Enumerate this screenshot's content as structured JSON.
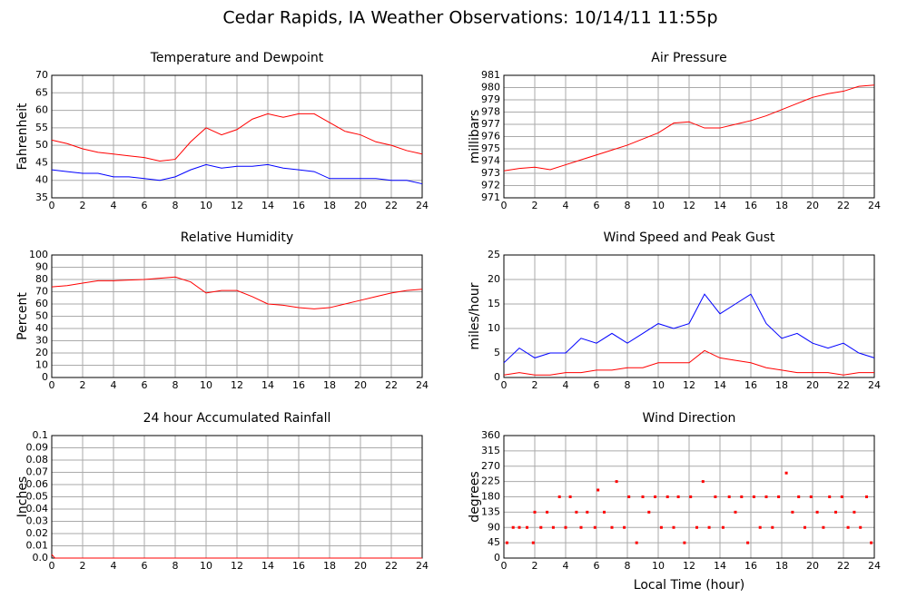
{
  "title": "Cedar Rapids, IA Weather Observations: 10/14/11 11:55p",
  "chart_data": [
    {
      "type": "line",
      "title": "Temperature and Dewpoint",
      "ylabel": "Fahrenheit",
      "x": [
        0,
        1,
        2,
        3,
        4,
        5,
        6,
        7,
        8,
        9,
        10,
        11,
        12,
        13,
        14,
        15,
        16,
        17,
        18,
        19,
        20,
        21,
        22,
        23,
        24
      ],
      "series": [
        {
          "color": "#ff0000",
          "values": [
            51.5,
            50.5,
            49,
            48,
            47.5,
            47,
            46.5,
            45.5,
            46,
            51,
            55,
            53,
            54.5,
            57.5,
            59,
            58,
            59,
            59,
            56.5,
            54,
            53,
            51,
            50,
            48.5,
            47.5
          ]
        },
        {
          "color": "#0000ff",
          "values": [
            43,
            42.5,
            42,
            42,
            41,
            41,
            40.5,
            40,
            41,
            43,
            44.5,
            43.5,
            44,
            44,
            44.5,
            43.5,
            43,
            42.5,
            40.5,
            40.5,
            40.5,
            40.5,
            40,
            40,
            39
          ]
        }
      ],
      "xlim": [
        0,
        24
      ],
      "xticks": [
        0,
        2,
        4,
        6,
        8,
        10,
        12,
        14,
        16,
        18,
        20,
        22,
        24
      ],
      "ylim": [
        35,
        70
      ],
      "yticks": [
        35,
        40,
        45,
        50,
        55,
        60,
        65,
        70
      ],
      "grid": true
    },
    {
      "type": "line",
      "title": "Air Pressure",
      "ylabel": "millibars",
      "x": [
        0,
        1,
        2,
        3,
        4,
        5,
        6,
        7,
        8,
        9,
        10,
        11,
        12,
        13,
        14,
        15,
        16,
        17,
        18,
        19,
        20,
        21,
        22,
        23,
        24
      ],
      "series": [
        {
          "color": "#ff0000",
          "values": [
            973.2,
            973.4,
            973.5,
            973.3,
            973.7,
            974.1,
            974.5,
            974.9,
            975.3,
            975.8,
            976.3,
            977.1,
            977.2,
            976.7,
            976.7,
            977,
            977.3,
            977.7,
            978.2,
            978.7,
            979.2,
            979.5,
            979.7,
            980.1,
            980.2
          ]
        }
      ],
      "xlim": [
        0,
        24
      ],
      "xticks": [
        0,
        2,
        4,
        6,
        8,
        10,
        12,
        14,
        16,
        18,
        20,
        22,
        24
      ],
      "ylim": [
        971,
        981
      ],
      "yticks": [
        971,
        972,
        973,
        974,
        975,
        976,
        977,
        978,
        979,
        980,
        981
      ],
      "grid": true
    },
    {
      "type": "line",
      "title": "Relative Humidity",
      "ylabel": "Percent",
      "x": [
        0,
        1,
        2,
        3,
        4,
        5,
        6,
        7,
        8,
        9,
        10,
        11,
        12,
        13,
        14,
        15,
        16,
        17,
        18,
        19,
        20,
        21,
        22,
        23,
        24
      ],
      "series": [
        {
          "color": "#ff0000",
          "values": [
            74,
            75,
            77,
            79,
            79,
            79.5,
            80,
            81,
            82,
            78,
            69,
            71,
            71,
            66,
            60,
            59,
            57,
            56,
            57,
            60,
            63,
            66,
            69,
            71,
            72
          ]
        }
      ],
      "xlim": [
        0,
        24
      ],
      "xticks": [
        0,
        2,
        4,
        6,
        8,
        10,
        12,
        14,
        16,
        18,
        20,
        22,
        24
      ],
      "ylim": [
        0,
        100
      ],
      "yticks": [
        0,
        10,
        20,
        30,
        40,
        50,
        60,
        70,
        80,
        90,
        100
      ],
      "grid": true
    },
    {
      "type": "line",
      "title": "Wind Speed and Peak Gust",
      "ylabel": "miles/hour",
      "x": [
        0,
        1,
        2,
        3,
        4,
        5,
        6,
        7,
        8,
        9,
        10,
        11,
        12,
        13,
        14,
        15,
        16,
        17,
        18,
        19,
        20,
        21,
        22,
        23,
        24
      ],
      "series": [
        {
          "color": "#0000ff",
          "values": [
            3,
            6,
            4,
            5,
            5,
            8,
            7,
            9,
            7,
            9,
            11,
            10,
            11,
            17,
            13,
            15,
            17,
            11,
            8,
            9,
            7,
            6,
            7,
            5,
            4
          ]
        },
        {
          "color": "#ff0000",
          "values": [
            0.5,
            1,
            0.5,
            0.5,
            1,
            1,
            1.5,
            1.5,
            2,
            2,
            3,
            3,
            3,
            5.5,
            4,
            3.5,
            3,
            2,
            1.5,
            1,
            1,
            1,
            0.5,
            1,
            1
          ]
        }
      ],
      "xlim": [
        0,
        24
      ],
      "xticks": [
        0,
        2,
        4,
        6,
        8,
        10,
        12,
        14,
        16,
        18,
        20,
        22,
        24
      ],
      "ylim": [
        0,
        25
      ],
      "yticks": [
        0,
        5,
        10,
        15,
        20,
        25
      ],
      "grid": true
    },
    {
      "type": "line",
      "title": "24 hour Accumulated Rainfall",
      "ylabel": "Inches",
      "x": [
        0,
        0.2,
        1,
        2,
        4,
        6,
        8,
        10,
        12,
        14,
        16,
        18,
        20,
        22,
        24
      ],
      "series": [
        {
          "color": "#ff0000",
          "values": [
            0.003,
            0,
            0,
            0,
            0,
            0,
            0,
            0,
            0,
            0,
            0,
            0,
            0,
            0,
            0
          ]
        }
      ],
      "xlim": [
        0,
        24
      ],
      "xticks": [
        0,
        2,
        4,
        6,
        8,
        10,
        12,
        14,
        16,
        18,
        20,
        22,
        24
      ],
      "ylim": [
        0,
        0.1
      ],
      "yticks": [
        {
          "value": 0,
          "label": "0.0"
        },
        0.01,
        0.02,
        0.03,
        0.04,
        0.05,
        0.06,
        0.07,
        0.08,
        0.09,
        0.1
      ],
      "grid": true
    },
    {
      "type": "scatter",
      "title": "Wind Direction",
      "ylabel": "degrees",
      "xlabel": "Local Time (hour)",
      "x": [
        0.2,
        0.6,
        1,
        1.5,
        1.9,
        2,
        2.4,
        2.8,
        3.2,
        3.6,
        4,
        4.3,
        4.7,
        5,
        5.4,
        5.9,
        6.1,
        6.5,
        7,
        7.3,
        7.8,
        8.1,
        8.6,
        9,
        9.4,
        9.8,
        10.2,
        10.6,
        11,
        11.3,
        11.7,
        12.1,
        12.5,
        12.9,
        13.3,
        13.7,
        14.2,
        14.6,
        15,
        15.4,
        15.8,
        16.2,
        16.6,
        17,
        17.4,
        17.8,
        18.3,
        18.7,
        19.1,
        19.5,
        19.9,
        20.3,
        20.7,
        21.1,
        21.5,
        21.9,
        22.3,
        22.7,
        23.1,
        23.5,
        23.8
      ],
      "values": [
        45,
        90,
        90,
        90,
        45,
        135,
        90,
        135,
        90,
        180,
        90,
        180,
        135,
        90,
        135,
        90,
        200,
        135,
        90,
        225,
        90,
        180,
        45,
        180,
        135,
        180,
        90,
        180,
        90,
        180,
        45,
        180,
        90,
        225,
        90,
        180,
        90,
        180,
        135,
        180,
        45,
        180,
        90,
        180,
        90,
        180,
        250,
        135,
        180,
        90,
        180,
        135,
        90,
        180,
        135,
        180,
        90,
        135,
        90,
        180,
        45
      ],
      "color": "#ff0000",
      "xlim": [
        0,
        24
      ],
      "xticks": [
        0,
        2,
        4,
        6,
        8,
        10,
        12,
        14,
        16,
        18,
        20,
        22,
        24
      ],
      "ylim": [
        0,
        360
      ],
      "yticks": [
        0,
        45,
        90,
        135,
        180,
        225,
        270,
        315,
        360
      ],
      "grid": true
    }
  ]
}
